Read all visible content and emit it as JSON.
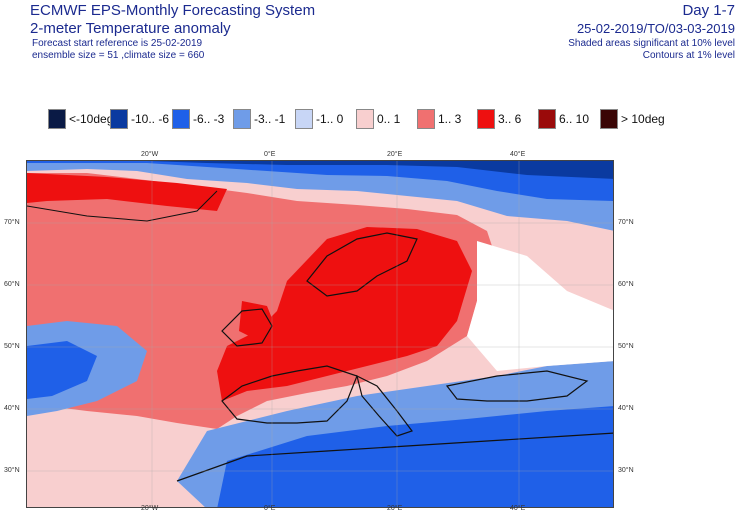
{
  "header": {
    "title_line1": "ECMWF EPS-Monthly Forecasting System",
    "title_line2": "2-meter Temperature anomaly",
    "meta_line1": "Forecast start reference is 25-02-2019",
    "meta_line2": "ensemble size = 51  ,climate size = 660",
    "right_line1": "Day 1-7",
    "right_line2": "25-02-2019/TO/03-03-2019",
    "right_meta1": "Shaded areas significant at 10% level",
    "right_meta2": "Contours at 1% level"
  },
  "legend": [
    {
      "label": "<-10deg",
      "color": "#0a1a45"
    },
    {
      "label": "-10.. -6",
      "color": "#0a3aa0"
    },
    {
      "label": "-6.. -3",
      "color": "#1f60e8"
    },
    {
      "label": "-3.. -1",
      "color": "#6f9ce8"
    },
    {
      "label": "-1.. 0",
      "color": "#c8d6f6"
    },
    {
      "label": "0.. 1",
      "color": "#f8cfcf"
    },
    {
      "label": "1.. 3",
      "color": "#f07070"
    },
    {
      "label": "3.. 6",
      "color": "#ee1010"
    },
    {
      "label": "6.. 10",
      "color": "#9a0a0a"
    },
    {
      "label": "> 10deg",
      "color": "#3a0505"
    }
  ],
  "axes": {
    "lon_labels": [
      "20°W",
      "0°E",
      "20°E",
      "40°E"
    ],
    "lat_labels": [
      "70°N",
      "60°N",
      "50°N",
      "40°N",
      "30°N"
    ]
  }
}
